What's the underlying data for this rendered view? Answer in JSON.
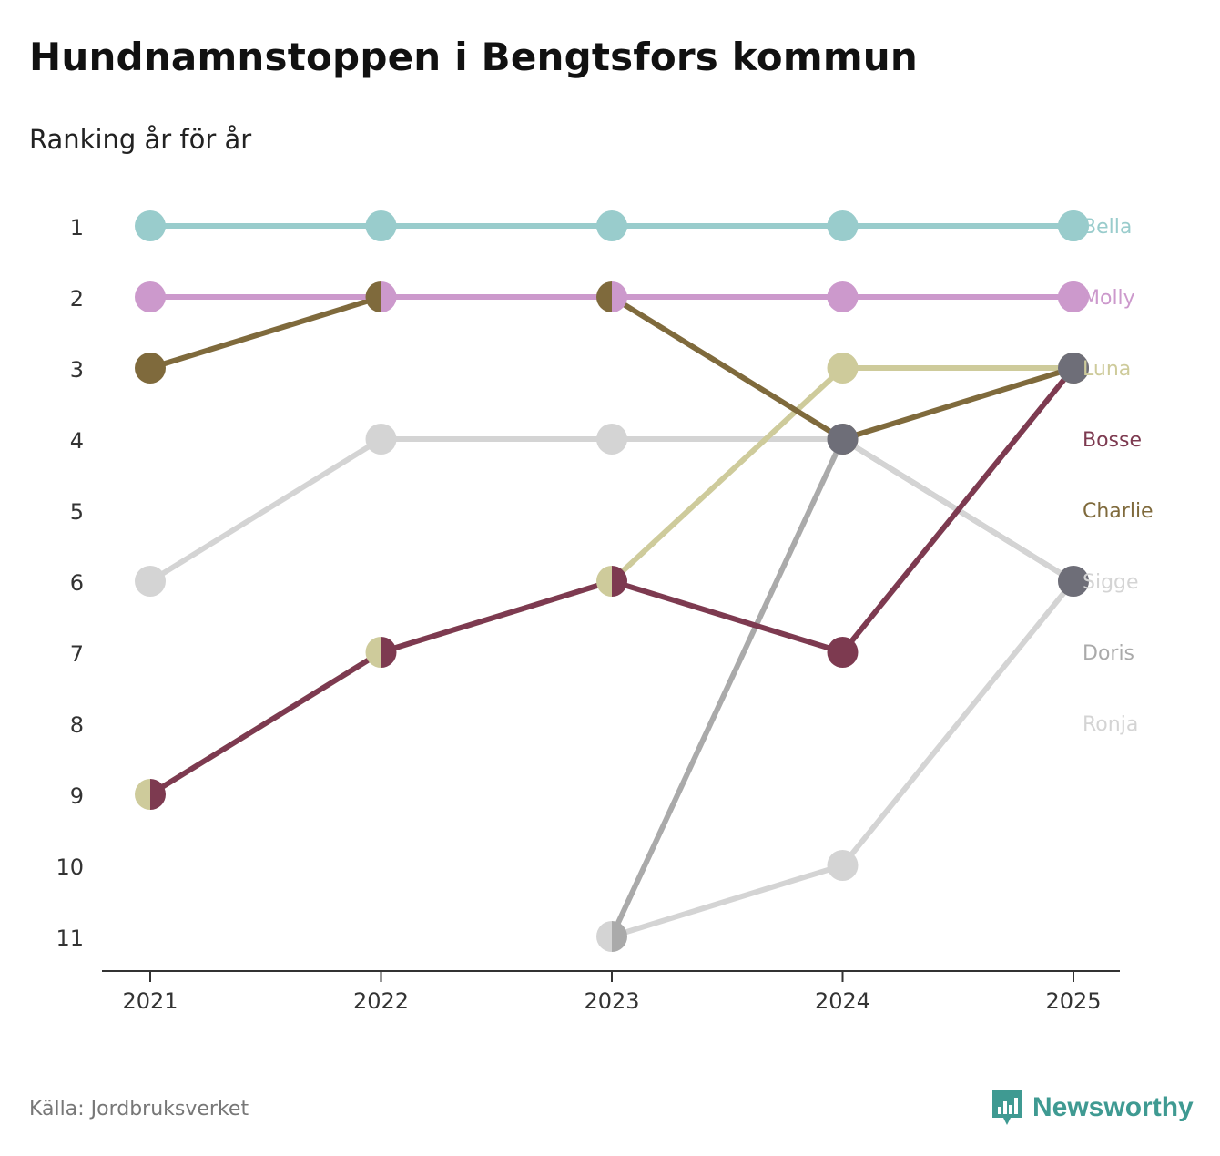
{
  "header": {
    "title": "Hundnamnstoppen i Bengtsfors kommun",
    "subtitle": "Ranking år för år"
  },
  "footer": {
    "source": "Källa: Jordbruksverket",
    "brand": "Newsworthy"
  },
  "chart_data": {
    "type": "line",
    "title": "Hundnamnstoppen i Bengtsfors kommun",
    "subtitle": "Ranking år för år",
    "xlabel": "",
    "ylabel": "",
    "x": [
      2021,
      2022,
      2023,
      2024,
      2025
    ],
    "x_tick_labels": [
      "2021",
      "2022",
      "2023",
      "2024",
      "2025"
    ],
    "y_tick_labels": [
      "1",
      "2",
      "3",
      "4",
      "5",
      "6",
      "7",
      "8",
      "9",
      "10",
      "11"
    ],
    "ylim": [
      1,
      11
    ],
    "y_inverted": true,
    "series": [
      {
        "name": "Ronja",
        "color": "#d4d4d4",
        "values": [
          null,
          null,
          11,
          10,
          6
        ]
      },
      {
        "name": "Doris",
        "color": "#aaaaaa",
        "values": [
          null,
          null,
          11,
          4,
          6
        ]
      },
      {
        "name": "Sigge",
        "color": "#d4d4d4",
        "values": [
          6,
          4,
          4,
          4,
          6
        ]
      },
      {
        "name": "Luna",
        "color": "#cecb9b",
        "values": [
          9,
          7,
          6,
          3,
          3
        ]
      },
      {
        "name": "Bosse",
        "color": "#7d3a50",
        "values": [
          9,
          7,
          6,
          7,
          3
        ]
      },
      {
        "name": "Charlie",
        "color": "#7f6a3c",
        "values": [
          3,
          2,
          2,
          4,
          3
        ]
      },
      {
        "name": "Molly",
        "color": "#cc99cc",
        "values": [
          2,
          2,
          2,
          2,
          2
        ]
      },
      {
        "name": "Bella",
        "color": "#99cccc",
        "values": [
          1,
          1,
          1,
          1,
          1
        ]
      }
    ],
    "end_markers_2025": [
      {
        "rank": 1,
        "color": "#99cccc"
      },
      {
        "rank": 2,
        "color": "#cc99cc"
      },
      {
        "rank": 3,
        "color": "#6e6e78"
      },
      {
        "rank": 6,
        "color": "#6e6e78"
      }
    ],
    "end_markers_2024": [
      {
        "rank": 4,
        "color": "#6e6e78"
      }
    ],
    "legend_labels": [
      {
        "name": "Bella",
        "slot": 1,
        "color": "#99cccc"
      },
      {
        "name": "Molly",
        "slot": 2,
        "color": "#cc99cc"
      },
      {
        "name": "Luna",
        "slot": 3,
        "color": "#cecb9b"
      },
      {
        "name": "Bosse",
        "slot": 4,
        "color": "#7d3a50"
      },
      {
        "name": "Charlie",
        "slot": 5,
        "color": "#7f6a3c"
      },
      {
        "name": "Sigge",
        "slot": 6,
        "color": "#d4d4d4"
      },
      {
        "name": "Doris",
        "slot": 7,
        "color": "#aaaaaa"
      },
      {
        "name": "Ronja",
        "slot": 8,
        "color": "#d4d4d4"
      }
    ]
  }
}
